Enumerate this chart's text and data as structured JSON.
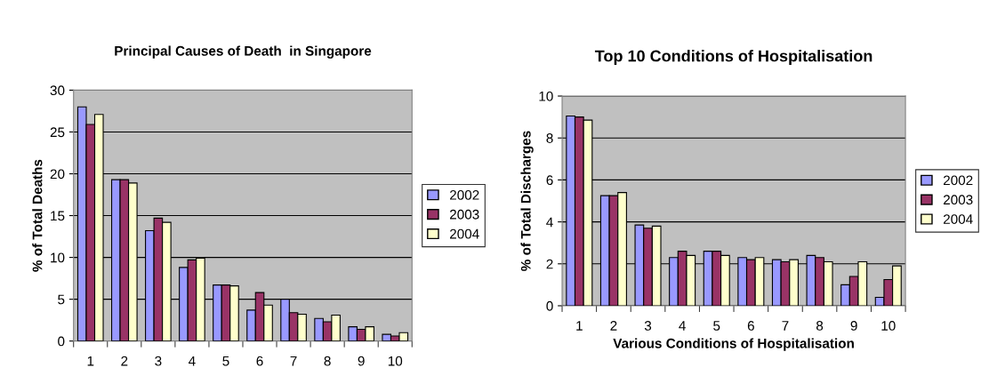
{
  "chart_data": [
    {
      "type": "bar",
      "title": "Principal Causes of Death  in Singapore",
      "ylabel": "% of Total Deaths",
      "categories": [
        "1",
        "2",
        "3",
        "4",
        "5",
        "6",
        "7",
        "8",
        "9",
        "10"
      ],
      "series": [
        {
          "name": "2002",
          "color": "#9999ff",
          "values": [
            28.0,
            19.3,
            13.2,
            8.8,
            6.7,
            3.7,
            5.0,
            2.7,
            1.7,
            0.8
          ]
        },
        {
          "name": "2003",
          "color": "#993366",
          "values": [
            25.9,
            19.3,
            14.7,
            9.7,
            6.7,
            5.8,
            3.4,
            2.3,
            1.4,
            0.6
          ]
        },
        {
          "name": "2004",
          "color": "#ffffcc",
          "values": [
            27.1,
            18.9,
            14.2,
            9.9,
            6.6,
            4.3,
            3.2,
            3.1,
            1.7,
            1.0
          ]
        }
      ],
      "ylim": [
        0,
        30
      ],
      "yticks": [
        0,
        5,
        10,
        15,
        20,
        25,
        30
      ],
      "grid": "y",
      "legend": "right"
    },
    {
      "type": "bar",
      "title": "Top 10 Conditions of Hospitalisation",
      "xlabel": "Various Conditions of Hospitalisation",
      "ylabel": "% of Total Discharges",
      "categories": [
        "1",
        "2",
        "3",
        "4",
        "5",
        "6",
        "7",
        "8",
        "9",
        "10"
      ],
      "series": [
        {
          "name": "2002",
          "color": "#9999ff",
          "values": [
            9.05,
            5.25,
            3.85,
            2.3,
            2.6,
            2.3,
            2.2,
            2.4,
            1.0,
            0.4
          ]
        },
        {
          "name": "2003",
          "color": "#993366",
          "values": [
            9.0,
            5.25,
            3.7,
            2.6,
            2.6,
            2.2,
            2.1,
            2.3,
            1.4,
            1.25
          ]
        },
        {
          "name": "2004",
          "color": "#ffffcc",
          "values": [
            8.85,
            5.4,
            3.8,
            2.4,
            2.4,
            2.3,
            2.2,
            2.1,
            2.1,
            1.9
          ]
        }
      ],
      "ylim": [
        0,
        10
      ],
      "yticks": [
        0,
        2,
        4,
        6,
        8,
        10
      ],
      "grid": "y",
      "legend": "right"
    }
  ]
}
